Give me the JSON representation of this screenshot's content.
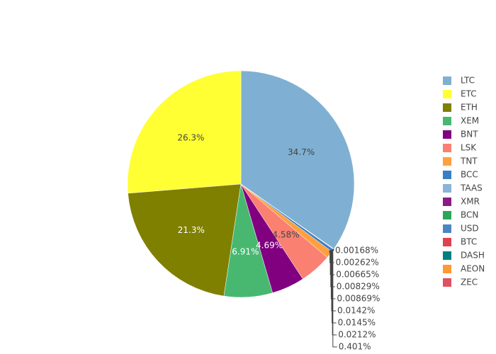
{
  "chart_data": {
    "type": "pie",
    "categories": [
      "LTC",
      "ETC",
      "ETH",
      "XEM",
      "BNT",
      "LSK",
      "TNT",
      "BCC",
      "TAAS",
      "XMR",
      "BCN",
      "USD",
      "BTC",
      "DASH",
      "AEON",
      "ZEC"
    ],
    "values": [
      34.7,
      26.3,
      21.3,
      6.91,
      4.69,
      4.58,
      1.04,
      0.401,
      0.0212,
      0.0145,
      0.0142,
      0.00869,
      0.00829,
      0.00665,
      0.00262,
      0.00168
    ],
    "value_labels": [
      "34.7%",
      "26.3%",
      "21.3%",
      "6.91%",
      "4.69%",
      "4.58%",
      null,
      "0.401%",
      "0.0212%",
      "0.0145%",
      "0.0142%",
      "0.00869%",
      "0.00829%",
      "0.00665%",
      "0.00262%",
      "0.00168%"
    ],
    "colors": [
      "#7fb0d3",
      "#ffff33",
      "#7f7f00",
      "#48b871",
      "#800080",
      "#fa8072",
      "#ffa040",
      "#3a7fc4",
      "#8ab4d8",
      "#8b1a8b",
      "#2ca65c",
      "#4a86c4",
      "#e04050",
      "#008080",
      "#ff9933",
      "#e05060"
    ],
    "legend_position": "right"
  }
}
